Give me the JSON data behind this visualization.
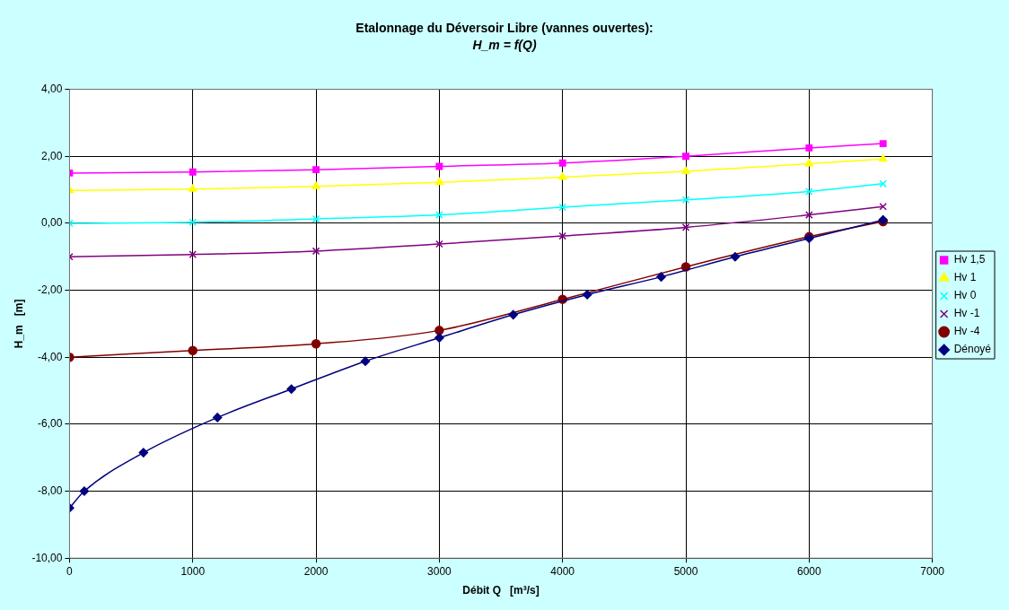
{
  "chart_data": {
    "type": "line",
    "title": "Etalonnage du Déversoir Libre (vannes ouvertes):",
    "subtitle": "H_m = f(Q)",
    "xlabel": "Débit Q   [m³/s]",
    "ylabel": "H_m   [m]",
    "x": [
      0,
      1000,
      2000,
      3000,
      4000,
      5000,
      6000,
      6600
    ],
    "series": [
      {
        "name": "Hv 1,5",
        "color": "#ff00ff",
        "marker": "square",
        "values": [
          1.5,
          1.53,
          1.6,
          1.7,
          1.8,
          2.0,
          2.25,
          2.38
        ]
      },
      {
        "name": "Hv 1",
        "color": "#ffff00",
        "marker": "triangle",
        "values": [
          0.98,
          1.02,
          1.1,
          1.22,
          1.38,
          1.55,
          1.78,
          1.92
        ]
      },
      {
        "name": "Hv 0",
        "color": "#00ffff",
        "marker": "cross",
        "values": [
          0,
          0.03,
          0.13,
          0.25,
          0.48,
          0.7,
          0.95,
          1.18
        ]
      },
      {
        "name": "Hv -1",
        "color": "#800080",
        "marker": "cross",
        "values": [
          -1,
          -0.93,
          -0.83,
          -0.62,
          -0.38,
          -0.12,
          0.25,
          0.5
        ]
      },
      {
        "name": "Hv -4",
        "color": "#800000",
        "marker": "circle",
        "values": [
          -4,
          -3.8,
          -3.6,
          -3.2,
          -2.27,
          -1.3,
          -0.4,
          0.05
        ]
      },
      {
        "name": "Dénoyé",
        "color": "#000080",
        "marker": "diamond",
        "x": [
          0,
          120,
          600,
          1200,
          1800,
          2400,
          3000,
          3600,
          4200,
          4800,
          5400,
          6000,
          6600
        ],
        "values": [
          -8.5,
          -8.0,
          -6.85,
          -5.8,
          -4.95,
          -4.12,
          -3.42,
          -2.73,
          -2.13,
          -1.6,
          -1.0,
          -0.45,
          0.1
        ]
      }
    ],
    "xlim": [
      0,
      7000
    ],
    "xticks": [
      0,
      1000,
      2000,
      3000,
      4000,
      5000,
      6000,
      7000
    ],
    "ylim": [
      -10,
      4
    ],
    "yticks": [
      {
        "value": -10,
        "label": "-10,00"
      },
      {
        "value": -8,
        "label": "-8,00"
      },
      {
        "value": -6,
        "label": "-6,00"
      },
      {
        "value": -4,
        "label": "-4,00"
      },
      {
        "value": -2,
        "label": "-2,00"
      },
      {
        "value": 0,
        "label": "0,00"
      },
      {
        "value": 2,
        "label": "2,00"
      },
      {
        "value": 4,
        "label": "4,00"
      }
    ],
    "grid": true,
    "legend": "right",
    "line_style": "solid"
  }
}
